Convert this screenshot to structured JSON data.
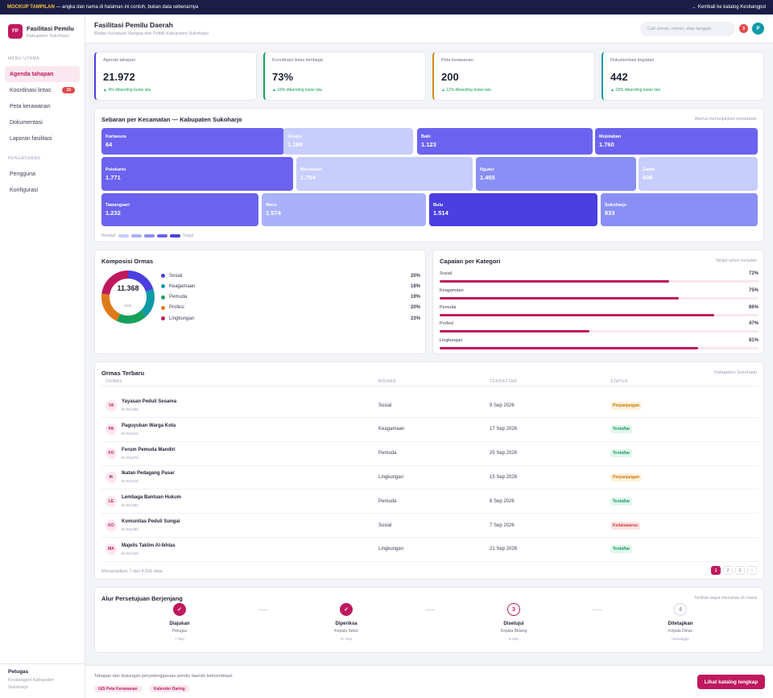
{
  "topbar": {
    "tag": "MOCKUP TAMPILAN",
    "note": " — angka dan nama di halaman ini contoh, bukan data sebenarnya",
    "back": "← Kembali ke katalog Kesbangpol"
  },
  "brand": {
    "logo": "FP",
    "title": "Fasilitasi Pemilu",
    "subtitle": "Kabupaten Sukoharjo"
  },
  "sidebar": {
    "sec_main": "MENU UTAMA",
    "items": [
      {
        "label": "Agenda tahapan",
        "badge": ""
      },
      {
        "label": "Koordinasi lintas",
        "badge": "15"
      },
      {
        "label": "Peta kerawanan",
        "badge": ""
      },
      {
        "label": "Dokumentasi",
        "badge": ""
      },
      {
        "label": "Laporan fasilitasi",
        "badge": ""
      }
    ],
    "sec_settings": "PENGATURAN",
    "settings": [
      {
        "label": "Pengguna"
      },
      {
        "label": "Konfigurasi"
      }
    ],
    "user": {
      "name": "Petugas",
      "org1": "Kesbangpol Kabupaten",
      "org2": "Sukoharjo"
    }
  },
  "header": {
    "title": "Fasilitasi Pemilu Daerah",
    "subtitle": "Badan Kesatuan Bangsa dan Politik Kabupaten Sukoharjo",
    "search_placeholder": "Cari ormas, nomor, atau tanggal...",
    "notif_count": "3",
    "avatar": "P"
  },
  "kpis": [
    {
      "label": "Agenda tahapan",
      "value": "21.972",
      "trend": "▲ 4% dibanding bulan lalu",
      "color": "#4b3fe0"
    },
    {
      "label": "Koordinasi lintas lembaga",
      "value": "73%",
      "trend": "▲ 18% dibanding bulan lalu",
      "color": "#16a05c"
    },
    {
      "label": "Peta kerawanan",
      "value": "200",
      "trend": "▲ 11% dibanding bulan lalu",
      "color": "#d4891c"
    },
    {
      "label": "Dokumentasi kegiatan",
      "value": "442",
      "trend": "▲ 18% dibanding bulan lalu",
      "color": "#0e9aa8"
    }
  ],
  "treemap": {
    "title": "Sebaran per Kecamatan — Kabupaten Sukoharjo",
    "note": "Warna menunjukkan kepadatan",
    "low": "Rendah",
    "high": "Tinggi",
    "cells": [
      {
        "name": "Kartasura",
        "value": "64",
        "level": 4
      },
      {
        "name": "Grogol",
        "value": "1.199",
        "level": 1
      },
      {
        "name": "Baki",
        "value": "1.123",
        "level": 4
      },
      {
        "name": "Mojolaban",
        "value": "1.760",
        "level": 4
      },
      {
        "name": "Polokarto",
        "value": "1.771",
        "level": 4
      },
      {
        "name": "Bendosari",
        "value": "1.704",
        "level": 1
      },
      {
        "name": "Nguter",
        "value": "1.455",
        "level": 3
      },
      {
        "name": "Gatak",
        "value": "606",
        "level": 1
      },
      {
        "name": "Tawangsari",
        "value": "1.232",
        "level": 4
      },
      {
        "name": "Weru",
        "value": "1.574",
        "level": 2
      },
      {
        "name": "Bulu",
        "value": "1.514",
        "level": 5
      },
      {
        "name": "Sukoharjo",
        "value": "833",
        "level": 3
      }
    ]
  },
  "donut": {
    "title": "Komposisi Ormas",
    "total": "11.368",
    "total_label": "total",
    "items": [
      {
        "label": "Sosial",
        "pct": "20%",
        "value": 20,
        "color": "#4b3fe0"
      },
      {
        "label": "Keagamaan",
        "pct": "18%",
        "value": 18,
        "color": "#0e9aa8"
      },
      {
        "label": "Pemuda",
        "pct": "19%",
        "value": 19,
        "color": "#16a05c"
      },
      {
        "label": "Profesi",
        "pct": "20%",
        "value": 20,
        "color": "#e07a18"
      },
      {
        "label": "Lingkungan",
        "pct": "23%",
        "value": 23,
        "color": "#c0185e"
      }
    ]
  },
  "capaian": {
    "title": "Capaian per Kategori",
    "note": "Target tahun berjalan",
    "items": [
      {
        "label": "Sosial",
        "pct": "72%",
        "value": 72
      },
      {
        "label": "Keagamaan",
        "pct": "75%",
        "value": 75
      },
      {
        "label": "Pemuda",
        "pct": "86%",
        "value": 86
      },
      {
        "label": "Profesi",
        "pct": "47%",
        "value": 47
      },
      {
        "label": "Lingkungan",
        "pct": "81%",
        "value": 81
      }
    ]
  },
  "table": {
    "title": "Ormas Terbaru",
    "note": "Kabupaten Sukoharjo",
    "headers": [
      "ORMAS",
      "BIDANG",
      "TERDAFTAR",
      "STATUS"
    ],
    "rows": [
      {
        "ini": "YA",
        "name": "Yayasan Peduli Sesama",
        "id": "ID 001206",
        "bidang": "Sosial",
        "date": "9 Sep 2026",
        "status": "Perpanjangan",
        "kind": "perp"
      },
      {
        "ini": "PA",
        "name": "Paguyuban Warga Kota",
        "id": "ID 001241",
        "bidang": "Keagamaan",
        "date": "17 Sep 2026",
        "status": "Terdaftar",
        "kind": "terd"
      },
      {
        "ini": "FO",
        "name": "Forum Pemuda Mandiri",
        "id": "ID 001278",
        "bidang": "Pemuda",
        "date": "25 Sep 2026",
        "status": "Terdaftar",
        "kind": "terd"
      },
      {
        "ini": "IK",
        "name": "Ikatan Pedagang Pasar",
        "id": "ID 001315",
        "bidang": "Lingkungan",
        "date": "15 Sep 2026",
        "status": "Perpanjangan",
        "kind": "perp"
      },
      {
        "ini": "LE",
        "name": "Lembaga Bantuan Hukum",
        "id": "ID 001352",
        "bidang": "Pemuda",
        "date": "6 Sep 2026",
        "status": "Terdaftar",
        "kind": "terd"
      },
      {
        "ini": "KO",
        "name": "Komunitas Peduli Sungai",
        "id": "ID 001389",
        "bidang": "Sosial",
        "date": "7 Sep 2026",
        "status": "Kedaluwarsa",
        "kind": "keda"
      },
      {
        "ini": "MA",
        "name": "Majelis Taklim Al-Ikhlas",
        "id": "ID 001426",
        "bidang": "Lingkungan",
        "date": "21 Sep 2026",
        "status": "Terdaftar",
        "kind": "terd"
      }
    ],
    "summary": "Menampilkan 7 dari 4.836 data",
    "pages": [
      "1",
      "2",
      "3",
      "›"
    ]
  },
  "flow": {
    "title": "Alur Persetujuan Berjenjang",
    "note": "Terlihat siapa menahan di mana",
    "steps": [
      {
        "icon": "✓",
        "title": "Diajukan",
        "role": "Petugas",
        "date": "7 Sep",
        "state": "done"
      },
      {
        "icon": "✓",
        "title": "Diperiksa",
        "role": "Kepala Seksi",
        "date": "27 Sep",
        "state": "done"
      },
      {
        "icon": "3",
        "title": "Disetujui",
        "role": "Kepala Bidang",
        "date": "5 Sep",
        "state": "cur"
      },
      {
        "icon": "4",
        "title": "Ditetapkan",
        "role": "Kepala Dinas",
        "date": "menunggu",
        "state": "todo"
      }
    ]
  },
  "footer": {
    "text": "Tahapan dan dukungan penyelenggaraan pemilu daerah terkoordinasi.",
    "chip1": "GIS Peta Kerawanan",
    "chip2": "Kalender Daring",
    "cta": "Lihat katalog lengkap"
  }
}
